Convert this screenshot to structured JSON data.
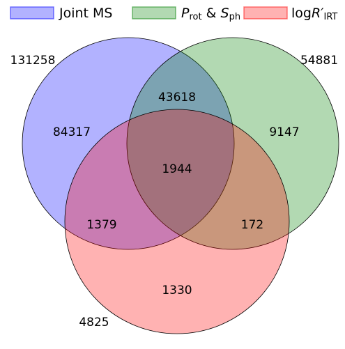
{
  "chart_data": {
    "type": "venn",
    "sets": [
      {
        "name": [
          {
            "text": "Joint MS"
          }
        ],
        "color": "#0000ff",
        "total": 131258
      },
      {
        "name": [
          {
            "text": "P",
            "style": "italic"
          },
          {
            "text": "rot",
            "style": "sub"
          },
          {
            "text": " & "
          },
          {
            "text": "S",
            "style": "italic"
          },
          {
            "text": "ph",
            "style": "sub"
          }
        ],
        "color": "#008000",
        "total": 54881
      },
      {
        "name": [
          {
            "text": "log"
          },
          {
            "text": "R′",
            "style": "italic"
          },
          {
            "text": "IRT",
            "style": "sub"
          }
        ],
        "color": "#ff0000",
        "total": 4825
      }
    ],
    "region_values": [
      84317,
      43618,
      9147,
      1944,
      1379,
      172,
      1330
    ]
  }
}
